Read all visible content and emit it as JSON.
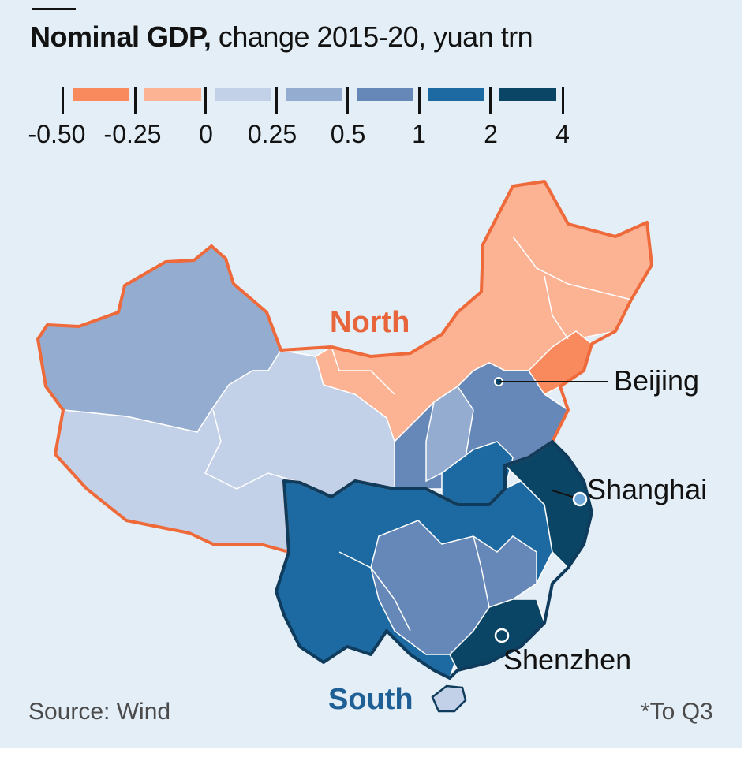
{
  "title": {
    "bold": "Nominal GDP,",
    "rest": " change 2015-20, yuan trn"
  },
  "legend": {
    "ticks": [
      "-0.50",
      "-0.25",
      "0",
      "0.25",
      "0.5",
      "1",
      "2",
      "4"
    ],
    "bins": [
      {
        "from": "-0.50",
        "to": "-0.25",
        "color": "#f88a5e"
      },
      {
        "from": "-0.25",
        "to": "0",
        "color": "#fbb394"
      },
      {
        "from": "0",
        "to": "0.25",
        "color": "#c3d1e8"
      },
      {
        "from": "0.25",
        "to": "0.5",
        "color": "#93acd0"
      },
      {
        "from": "0.5",
        "to": "1",
        "color": "#6588b9"
      },
      {
        "from": "1",
        "to": "2",
        "color": "#1c6aa1"
      },
      {
        "from": "2",
        "to": "4",
        "color": "#0b4565"
      }
    ]
  },
  "map": {
    "regions": [
      {
        "name": "North",
        "label_color": "#e8643a",
        "outline_color": "#ef6a3a"
      },
      {
        "name": "South",
        "label_color": "#1e5f95",
        "outline_color": "#0f3b5c"
      }
    ],
    "cities": [
      {
        "name": "Beijing"
      },
      {
        "name": "Shanghai"
      },
      {
        "name": "Shenzhen"
      }
    ]
  },
  "source": "Source: Wind",
  "footnote": "*To Q3"
}
